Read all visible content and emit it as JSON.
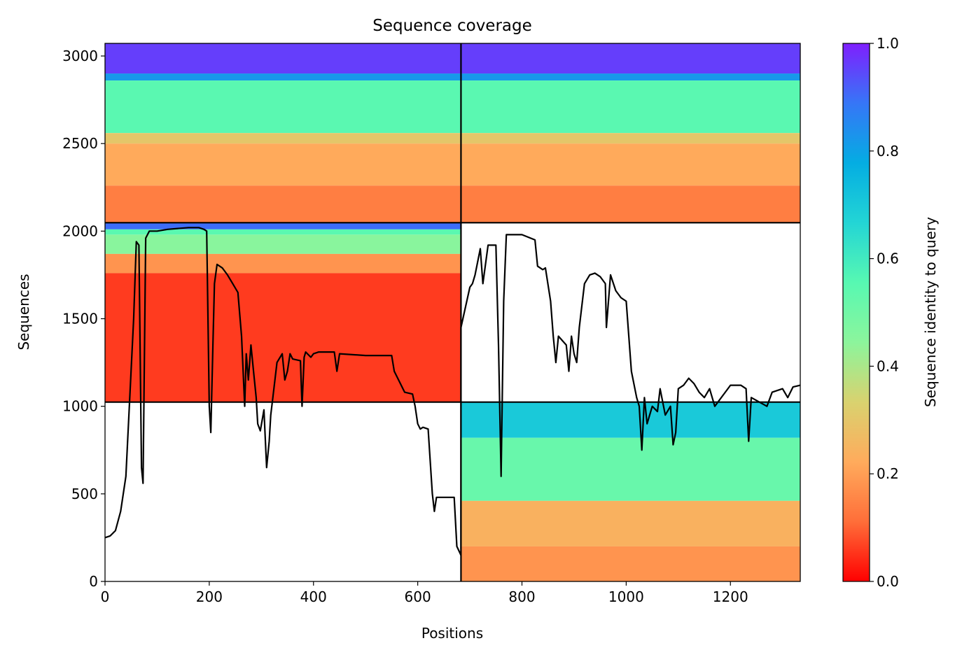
{
  "chart_data": {
    "type": "heatmap",
    "title": "Sequence coverage",
    "xlabel": "Positions",
    "ylabel": "Sequences",
    "xlim": [
      0,
      1334
    ],
    "ylim": [
      0,
      3072
    ],
    "xticks": [
      0,
      200,
      400,
      600,
      800,
      1000,
      1200
    ],
    "yticks": [
      0,
      500,
      1000,
      1500,
      2000,
      2500,
      3000
    ],
    "colorbar": {
      "label": "Sequence identity to query",
      "range": [
        0,
        1
      ],
      "ticks": [
        0.0,
        0.2,
        0.4,
        0.6,
        0.8,
        1.0
      ],
      "tick_labels": [
        "0.0",
        "0.2",
        "0.4",
        "0.6",
        "0.8",
        "1.0"
      ],
      "colormap": "rainbow_r",
      "stops": [
        "#ff0000",
        "#ff6e39",
        "#ffab5c",
        "#d9d26f",
        "#8cf59c",
        "#57f8b2",
        "#23d5d5",
        "#04ade2",
        "#3676f7",
        "#7f1ffe"
      ]
    },
    "divider_x": 683,
    "divider_y": [
      1024,
      2048
    ],
    "blocks": [
      {
        "x": [
          0,
          683
        ],
        "y": [
          2048,
          3072
        ],
        "identity": [
          {
            "y": [
              2900,
              3072
            ],
            "value": 0.96
          },
          {
            "y": [
              2860,
              2900
            ],
            "value": 0.82
          },
          {
            "y": [
              2560,
              2860
            ],
            "value": 0.55
          },
          {
            "y": [
              2500,
              2560
            ],
            "value": 0.3
          },
          {
            "y": [
              2260,
              2500
            ],
            "value": 0.22
          },
          {
            "y": [
              2048,
              2260
            ],
            "value": 0.14
          }
        ]
      },
      {
        "x": [
          683,
          1334
        ],
        "y": [
          2048,
          3072
        ],
        "identity": [
          {
            "y": [
              2900,
              3072
            ],
            "value": 0.96
          },
          {
            "y": [
              2860,
              2900
            ],
            "value": 0.82
          },
          {
            "y": [
              2560,
              2860
            ],
            "value": 0.55
          },
          {
            "y": [
              2500,
              2560
            ],
            "value": 0.3
          },
          {
            "y": [
              2260,
              2500
            ],
            "value": 0.22
          },
          {
            "y": [
              2048,
              2260
            ],
            "value": 0.14
          }
        ]
      },
      {
        "x": [
          0,
          683
        ],
        "y": [
          1024,
          2048
        ],
        "identity": [
          {
            "y": [
              2010,
              2048
            ],
            "value": 0.9
          },
          {
            "y": [
              1980,
              2010
            ],
            "value": 0.55
          },
          {
            "y": [
              1870,
              1980
            ],
            "value": 0.45
          },
          {
            "y": [
              1760,
              1870
            ],
            "value": 0.18
          },
          {
            "y": [
              1024,
              1760
            ],
            "value": 0.06
          }
        ]
      },
      {
        "x": [
          683,
          1334
        ],
        "y": [
          0,
          1024
        ],
        "identity": [
          {
            "y": [
              820,
              1024
            ],
            "value": 0.7
          },
          {
            "y": [
              460,
              820
            ],
            "value": 0.52
          },
          {
            "y": [
              200,
              460
            ],
            "value": 0.24
          },
          {
            "y": [
              0,
              200
            ],
            "value": 0.18
          }
        ]
      }
    ],
    "coverage_line": {
      "x": [
        0,
        10,
        20,
        30,
        40,
        55,
        60,
        65,
        70,
        73,
        78,
        85,
        100,
        120,
        160,
        180,
        190,
        195,
        200,
        203,
        207,
        210,
        215,
        225,
        235,
        245,
        255,
        262,
        268,
        271,
        275,
        280,
        285,
        290,
        293,
        298,
        305,
        310,
        315,
        318,
        322,
        330,
        340,
        345,
        350,
        355,
        360,
        375,
        378,
        382,
        385,
        395,
        400,
        410,
        420,
        440,
        445,
        450,
        500,
        550,
        555,
        575,
        590,
        595,
        600,
        605,
        610,
        620,
        628,
        632,
        636,
        640,
        670,
        675,
        683,
        683,
        700,
        705,
        710,
        720,
        725,
        735,
        750,
        755,
        760,
        765,
        770,
        800,
        825,
        830,
        840,
        845,
        855,
        860,
        865,
        870,
        885,
        890,
        895,
        900,
        905,
        910,
        920,
        930,
        940,
        950,
        960,
        962,
        970,
        980,
        990,
        1000,
        1005,
        1010,
        1020,
        1025,
        1030,
        1035,
        1040,
        1050,
        1060,
        1065,
        1075,
        1085,
        1090,
        1095,
        1100,
        1110,
        1120,
        1130,
        1140,
        1150,
        1160,
        1170,
        1200,
        1220,
        1230,
        1235,
        1240,
        1270,
        1280,
        1300,
        1310,
        1320,
        1334
      ],
      "y": [
        250,
        260,
        290,
        400,
        600,
        1500,
        1940,
        1920,
        650,
        560,
        1960,
        2000,
        2000,
        2010,
        2020,
        2020,
        2010,
        2000,
        1000,
        850,
        1350,
        1700,
        1810,
        1790,
        1750,
        1700,
        1650,
        1400,
        1000,
        1300,
        1150,
        1350,
        1200,
        1050,
        900,
        860,
        980,
        650,
        800,
        950,
        1050,
        1250,
        1300,
        1150,
        1200,
        1300,
        1270,
        1260,
        1000,
        1280,
        1310,
        1280,
        1300,
        1310,
        1310,
        1310,
        1200,
        1300,
        1290,
        1290,
        1200,
        1080,
        1070,
        1000,
        900,
        870,
        880,
        870,
        500,
        400,
        480,
        480,
        480,
        200,
        150,
        1450,
        1680,
        1700,
        1750,
        1900,
        1700,
        1920,
        1920,
        1350,
        600,
        1600,
        1980,
        1980,
        1950,
        1800,
        1780,
        1790,
        1600,
        1400,
        1250,
        1400,
        1350,
        1200,
        1400,
        1300,
        1250,
        1450,
        1700,
        1750,
        1760,
        1740,
        1700,
        1450,
        1750,
        1660,
        1620,
        1600,
        1400,
        1200,
        1050,
        1000,
        750,
        1050,
        900,
        1000,
        970,
        1100,
        950,
        1000,
        780,
        850,
        1100,
        1120,
        1160,
        1130,
        1080,
        1050,
        1100,
        1000,
        1120,
        1120,
        1100,
        800,
        1050,
        1000,
        1080,
        1100,
        1050,
        1110,
        1120,
        1110
      ]
    }
  }
}
